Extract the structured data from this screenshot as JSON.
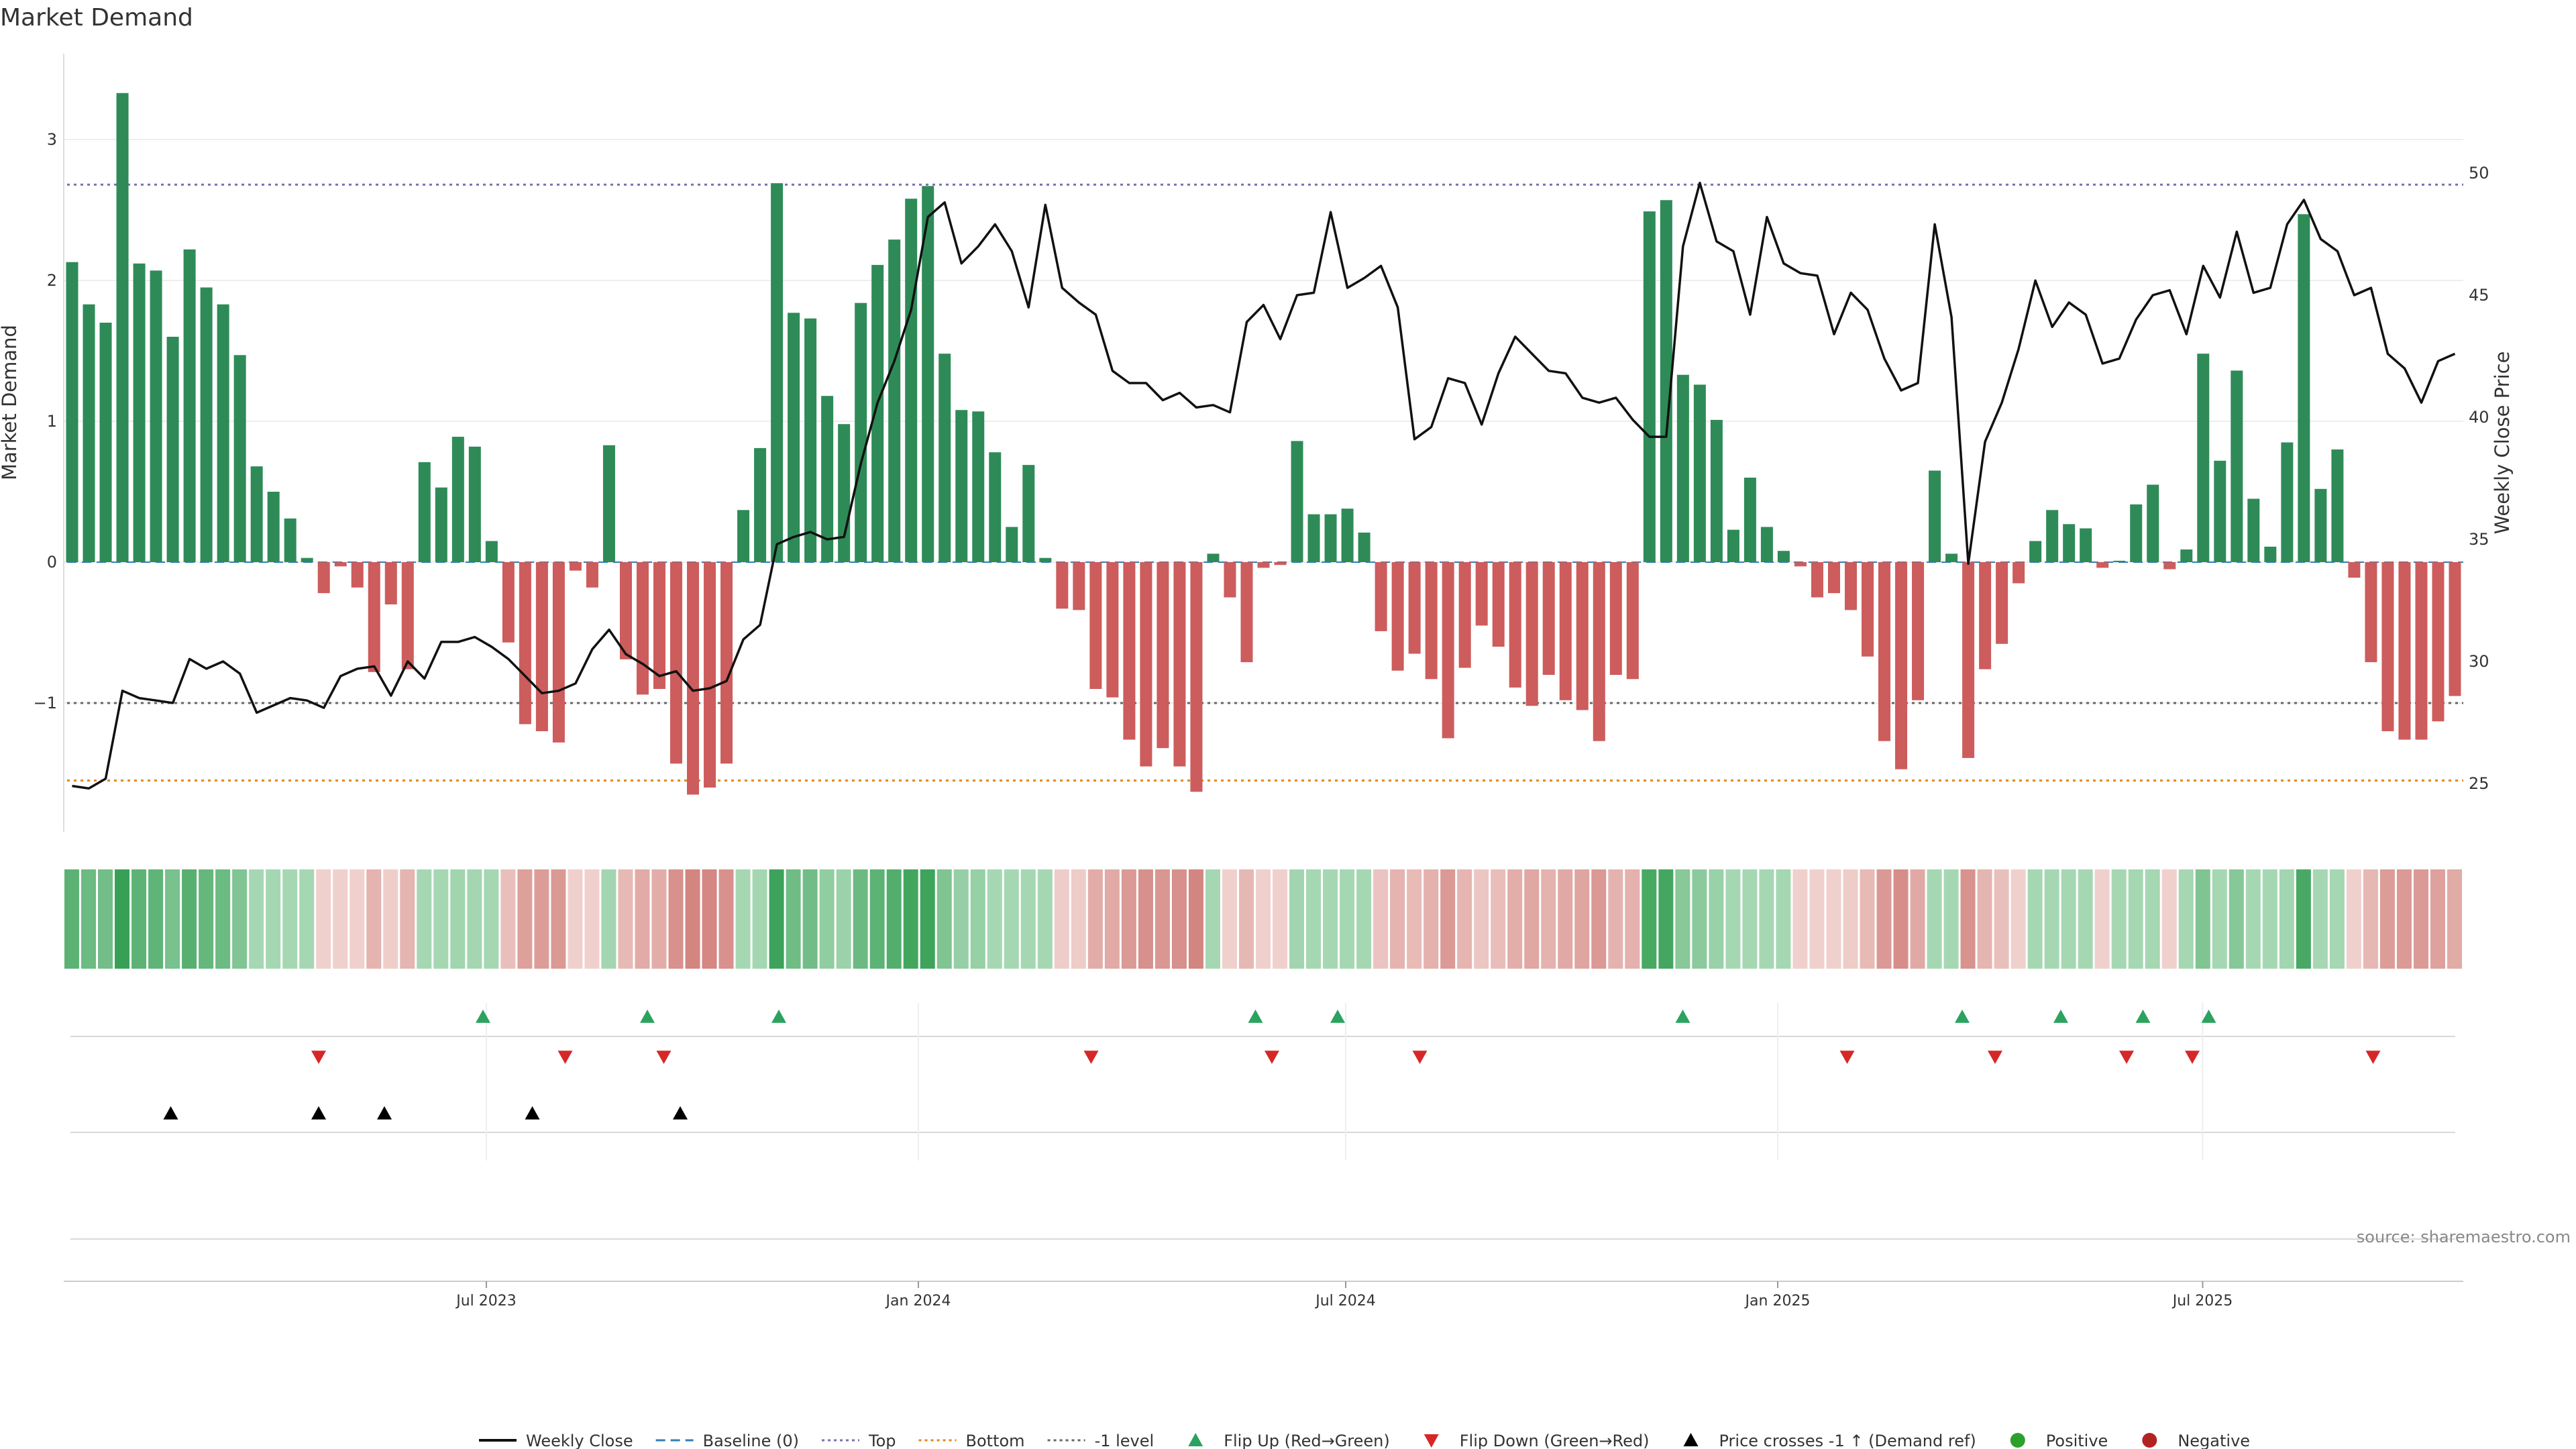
{
  "chart_data": {
    "type": "bar",
    "title": "Market Demand",
    "ylabel": "Market Demand",
    "y2label": "Weekly Close Price",
    "ylim": [
      -1.9,
      3.6
    ],
    "y2lim": [
      23.5,
      55
    ],
    "yticks": [
      -1,
      0,
      1,
      2,
      3
    ],
    "y2ticks": [
      25,
      30,
      35,
      40,
      45,
      50
    ],
    "x_start": "2023-01-02",
    "x_end": "2025-10-13",
    "xticks": [
      {
        "date": "2023-07-01",
        "label": "Jul 2023"
      },
      {
        "date": "2024-01-01",
        "label": "Jan 2024"
      },
      {
        "date": "2024-07-01",
        "label": "Jul 2024"
      },
      {
        "date": "2025-01-01",
        "label": "Jan 2025"
      },
      {
        "date": "2025-07-01",
        "label": "Jul 2025"
      }
    ],
    "reference_lines": {
      "top": 2.68,
      "bottom": -1.55,
      "minus1": -1,
      "baseline": 0
    },
    "demand": [
      2.13,
      1.83,
      1.7,
      3.33,
      2.12,
      2.07,
      1.6,
      2.22,
      1.95,
      1.83,
      1.47,
      0.68,
      0.5,
      0.31,
      0.03,
      -0.22,
      -0.03,
      -0.18,
      -0.78,
      -0.3,
      -0.76,
      0.71,
      0.53,
      0.89,
      0.82,
      0.15,
      -0.57,
      -1.15,
      -1.2,
      -1.28,
      -0.06,
      -0.18,
      0.83,
      -0.69,
      -0.94,
      -0.9,
      -1.43,
      -1.65,
      -1.6,
      -1.43,
      0.37,
      0.81,
      2.69,
      1.77,
      1.73,
      1.18,
      0.98,
      1.84,
      2.11,
      2.29,
      2.58,
      2.67,
      1.48,
      1.08,
      1.07,
      0.78,
      0.25,
      0.69,
      0.03,
      -0.33,
      -0.34,
      -0.9,
      -0.96,
      -1.26,
      -1.45,
      -1.32,
      -1.45,
      -1.63,
      0.06,
      -0.25,
      -0.71,
      -0.04,
      -0.02,
      0.86,
      0.34,
      0.34,
      0.38,
      0.21,
      -0.49,
      -0.77,
      -0.65,
      -0.83,
      -1.25,
      -0.75,
      -0.45,
      -0.6,
      -0.89,
      -1.02,
      -0.8,
      -0.98,
      -1.05,
      -1.27,
      -0.8,
      -0.83,
      2.49,
      2.57,
      1.33,
      1.26,
      1.01,
      0.23,
      0.6,
      0.25,
      0.08,
      -0.03,
      -0.25,
      -0.22,
      -0.34,
      -0.67,
      -1.27,
      -1.47,
      -0.98,
      0.65,
      0.06,
      -1.39,
      -0.76,
      -0.58,
      -0.15,
      0.15,
      0.37,
      0.27,
      0.24,
      -0.04,
      0.01,
      0.41,
      0.55,
      -0.05,
      0.09,
      1.48,
      0.72,
      1.36,
      0.45,
      0.11,
      0.85,
      2.47,
      0.52,
      0.8,
      -0.11,
      -0.71,
      -1.2,
      -1.26,
      -1.26,
      -1.13,
      -0.95
    ],
    "weekly_close": [
      24.9,
      24.8,
      25.2,
      28.8,
      28.5,
      28.4,
      28.3,
      30.1,
      29.7,
      30.0,
      29.5,
      27.9,
      28.2,
      28.5,
      28.4,
      28.1,
      29.4,
      29.7,
      29.8,
      28.6,
      30.0,
      29.3,
      30.8,
      30.8,
      31.0,
      30.6,
      30.1,
      29.4,
      28.7,
      28.8,
      29.1,
      30.5,
      31.3,
      30.3,
      29.9,
      29.4,
      29.6,
      28.8,
      28.9,
      29.2,
      30.9,
      31.5,
      34.8,
      35.1,
      35.3,
      35.0,
      35.1,
      38.1,
      40.6,
      42.3,
      44.4,
      48.2,
      48.8,
      46.3,
      47.0,
      47.9,
      46.8,
      44.5,
      48.7,
      45.3,
      44.7,
      44.2,
      41.9,
      41.4,
      41.4,
      40.7,
      41.0,
      40.4,
      40.5,
      40.2,
      43.9,
      44.6,
      43.2,
      45.0,
      45.1,
      48.4,
      45.3,
      45.7,
      46.2,
      44.5,
      39.1,
      39.6,
      41.6,
      41.4,
      39.7,
      41.8,
      43.3,
      42.6,
      41.9,
      41.8,
      40.8,
      40.6,
      40.8,
      39.9,
      39.2,
      39.2,
      47.0,
      49.6,
      47.2,
      46.8,
      44.2,
      48.2,
      46.3,
      45.9,
      45.8,
      43.4,
      45.1,
      44.4,
      42.4,
      41.1,
      41.4,
      47.9,
      44.1,
      34.0,
      39.0,
      40.6,
      42.8,
      45.6,
      43.7,
      44.7,
      44.2,
      42.2,
      42.4,
      44.0,
      45.0,
      45.2,
      43.4,
      46.2,
      44.9,
      47.6,
      45.1,
      45.3,
      47.9,
      48.9,
      47.3,
      46.8,
      45.0,
      45.3,
      42.6,
      42.0,
      40.6,
      42.3,
      42.6
    ],
    "flip_up": [
      "2023-06-26",
      "2023-09-04",
      "2023-10-30",
      "2024-05-20",
      "2024-06-24",
      "2024-11-18",
      "2025-03-17",
      "2025-04-28",
      "2025-06-02",
      "2025-06-30"
    ],
    "flip_down": [
      "2023-04-17",
      "2023-07-31",
      "2023-09-11",
      "2024-03-11",
      "2024-05-27",
      "2024-07-29",
      "2025-01-27",
      "2025-03-31",
      "2025-05-26",
      "2025-06-23",
      "2025-09-08"
    ],
    "cross_up": [
      "2023-02-13",
      "2023-04-17",
      "2023-05-15",
      "2023-07-17",
      "2023-09-18"
    ],
    "legend": [
      {
        "label": "Weekly Close",
        "kind": "line",
        "color": "#111111"
      },
      {
        "label": "Baseline (0)",
        "kind": "dash",
        "color": "#2f7fb8"
      },
      {
        "label": "Top",
        "kind": "dot",
        "color": "#7a6fae"
      },
      {
        "label": "Bottom",
        "kind": "dot",
        "color": "#e08a1e"
      },
      {
        "label": "-1 level",
        "kind": "dot",
        "color": "#666666"
      },
      {
        "label": "Flip Up (Red→Green)",
        "kind": "tri-up",
        "color": "#2ca25f"
      },
      {
        "label": "Flip Down (Green→Red)",
        "kind": "tri-down",
        "color": "#d62728"
      },
      {
        "label": "Price crosses -1 ↑ (Demand ref)",
        "kind": "tri-up",
        "color": "#000000"
      },
      {
        "label": "Positive",
        "kind": "dot-marker",
        "color": "#2ca02c"
      },
      {
        "label": "Negative",
        "kind": "dot-marker",
        "color": "#b22222"
      }
    ],
    "source": "source: sharemaestro.com"
  },
  "colors": {
    "positive": "#2e8b57",
    "negative": "#cd5c5c",
    "price": "#111111"
  }
}
